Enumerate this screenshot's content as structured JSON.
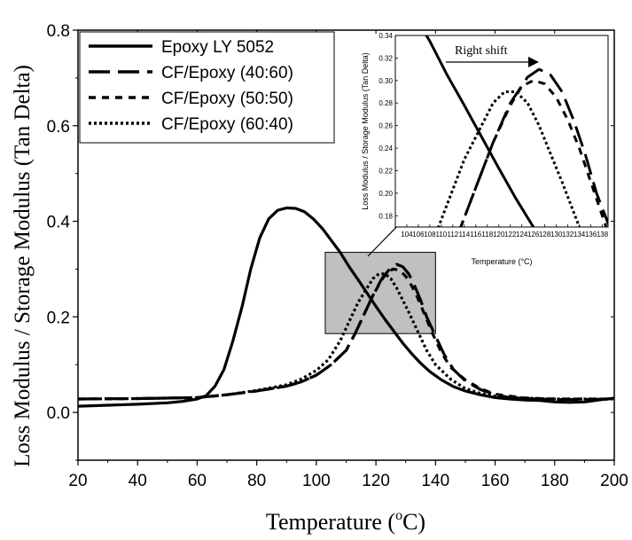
{
  "chart_data": [
    {
      "type": "line",
      "xlabel": "Temperature (°C)",
      "xlabel_parts": {
        "pre": "Temperature (",
        "sup": "o",
        "post": "C)"
      },
      "ylabel": "Loss Modulus / Storage Modulus (Tan Delta)",
      "xlim": [
        20,
        200
      ],
      "ylim": [
        -0.1,
        0.8
      ],
      "xticks": [
        20,
        40,
        60,
        80,
        100,
        120,
        140,
        160,
        180,
        200
      ],
      "xtick_labels": [
        "20",
        "40",
        "60",
        "80",
        "100",
        "120",
        "140",
        "160",
        "180",
        "200"
      ],
      "yticks": [
        0.0,
        0.2,
        0.4,
        0.6,
        0.8
      ],
      "ytick_labels": [
        "0.0",
        "0.2",
        "0.4",
        "0.6",
        "0.8"
      ],
      "grid": false,
      "legend_position": "top-left",
      "highlight_region": {
        "x": [
          103,
          140
        ],
        "y": [
          0.165,
          0.335
        ]
      },
      "series": [
        {
          "name": "Epoxy LY 5052",
          "dash": "solid",
          "points": [
            [
              20,
              0.013
            ],
            [
              30,
              0.015
            ],
            [
              40,
              0.017
            ],
            [
              50,
              0.02
            ],
            [
              55,
              0.023
            ],
            [
              60,
              0.028
            ],
            [
              63,
              0.035
            ],
            [
              66,
              0.055
            ],
            [
              69,
              0.09
            ],
            [
              72,
              0.15
            ],
            [
              75,
              0.22
            ],
            [
              78,
              0.3
            ],
            [
              81,
              0.365
            ],
            [
              84,
              0.405
            ],
            [
              87,
              0.423
            ],
            [
              90,
              0.428
            ],
            [
              93,
              0.427
            ],
            [
              96,
              0.42
            ],
            [
              99,
              0.405
            ],
            [
              102,
              0.385
            ],
            [
              105,
              0.36
            ],
            [
              108,
              0.335
            ],
            [
              111,
              0.305
            ],
            [
              114,
              0.278
            ],
            [
              117,
              0.25
            ],
            [
              120,
              0.222
            ],
            [
              123,
              0.195
            ],
            [
              126,
              0.17
            ],
            [
              129,
              0.145
            ],
            [
              132,
              0.123
            ],
            [
              135,
              0.103
            ],
            [
              138,
              0.086
            ],
            [
              142,
              0.068
            ],
            [
              146,
              0.054
            ],
            [
              150,
              0.045
            ],
            [
              155,
              0.037
            ],
            [
              160,
              0.031
            ],
            [
              165,
              0.028
            ],
            [
              170,
              0.026
            ],
            [
              175,
              0.025
            ],
            [
              180,
              0.022
            ],
            [
              185,
              0.021
            ],
            [
              190,
              0.022
            ],
            [
              195,
              0.026
            ],
            [
              200,
              0.03
            ]
          ]
        },
        {
          "name": "CF/Epoxy (40:60)",
          "dash": "longdash",
          "points": [
            [
              20,
              0.028
            ],
            [
              40,
              0.029
            ],
            [
              60,
              0.031
            ],
            [
              70,
              0.037
            ],
            [
              80,
              0.045
            ],
            [
              90,
              0.055
            ],
            [
              95,
              0.064
            ],
            [
              100,
              0.078
            ],
            [
              105,
              0.1
            ],
            [
              110,
              0.13
            ],
            [
              113,
              0.165
            ],
            [
              116,
              0.205
            ],
            [
              119,
              0.245
            ],
            [
              122,
              0.28
            ],
            [
              125,
              0.303
            ],
            [
              127,
              0.31
            ],
            [
              129,
              0.305
            ],
            [
              131,
              0.29
            ],
            [
              133,
              0.265
            ],
            [
              135,
              0.235
            ],
            [
              137,
              0.2
            ],
            [
              140,
              0.16
            ],
            [
              143,
              0.12
            ],
            [
              146,
              0.09
            ],
            [
              150,
              0.066
            ],
            [
              155,
              0.048
            ],
            [
              160,
              0.037
            ],
            [
              165,
              0.031
            ],
            [
              170,
              0.029
            ],
            [
              180,
              0.027
            ],
            [
              190,
              0.027
            ],
            [
              200,
              0.028
            ]
          ]
        },
        {
          "name": "CF/Epoxy (50:50)",
          "dash": "dashed",
          "points": [
            [
              20,
              0.028
            ],
            [
              40,
              0.029
            ],
            [
              60,
              0.031
            ],
            [
              70,
              0.037
            ],
            [
              80,
              0.045
            ],
            [
              90,
              0.055
            ],
            [
              95,
              0.064
            ],
            [
              100,
              0.078
            ],
            [
              105,
              0.1
            ],
            [
              110,
              0.13
            ],
            [
              113,
              0.165
            ],
            [
              116,
              0.205
            ],
            [
              119,
              0.245
            ],
            [
              122,
              0.278
            ],
            [
              124,
              0.295
            ],
            [
              126,
              0.3
            ],
            [
              128,
              0.297
            ],
            [
              130,
              0.285
            ],
            [
              132,
              0.265
            ],
            [
              134,
              0.24
            ],
            [
              136,
              0.21
            ],
            [
              139,
              0.165
            ],
            [
              142,
              0.125
            ],
            [
              145,
              0.095
            ],
            [
              150,
              0.068
            ],
            [
              155,
              0.05
            ],
            [
              160,
              0.038
            ],
            [
              170,
              0.03
            ],
            [
              180,
              0.028
            ],
            [
              190,
              0.028
            ],
            [
              200,
              0.028
            ]
          ]
        },
        {
          "name": "CF/Epoxy (60:40)",
          "dash": "dotted",
          "points": [
            [
              20,
              0.028
            ],
            [
              40,
              0.029
            ],
            [
              60,
              0.031
            ],
            [
              70,
              0.037
            ],
            [
              80,
              0.046
            ],
            [
              90,
              0.058
            ],
            [
              95,
              0.07
            ],
            [
              100,
              0.088
            ],
            [
              104,
              0.11
            ],
            [
              108,
              0.15
            ],
            [
              111,
              0.19
            ],
            [
              114,
              0.23
            ],
            [
              117,
              0.26
            ],
            [
              119,
              0.28
            ],
            [
              121,
              0.29
            ],
            [
              123,
              0.29
            ],
            [
              125,
              0.28
            ],
            [
              127,
              0.26
            ],
            [
              129,
              0.235
            ],
            [
              131,
              0.21
            ],
            [
              134,
              0.17
            ],
            [
              137,
              0.13
            ],
            [
              140,
              0.1
            ],
            [
              145,
              0.07
            ],
            [
              150,
              0.05
            ],
            [
              155,
              0.04
            ],
            [
              160,
              0.034
            ],
            [
              170,
              0.03
            ],
            [
              180,
              0.028
            ],
            [
              190,
              0.028
            ],
            [
              200,
              0.028
            ]
          ]
        }
      ]
    },
    {
      "type": "line",
      "role": "inset",
      "xlabel": "Temperature (°C)",
      "ylabel": "Loss Modulus / Storage Modulus (Tan Delta)",
      "xlim": [
        102,
        139
      ],
      "ylim": [
        0.17,
        0.34
      ],
      "xticks": [
        104,
        106,
        108,
        110,
        112,
        114,
        116,
        118,
        120,
        122,
        124,
        126,
        128,
        130,
        132,
        134,
        136,
        138
      ],
      "xtick_labels": [
        "104",
        "106",
        "108",
        "110",
        "112",
        "114",
        "116",
        "118",
        "120",
        "122",
        "124",
        "126",
        "128",
        "130",
        "132",
        "134",
        "136",
        "138"
      ],
      "yticks": [
        0.18,
        0.2,
        0.22,
        0.24,
        0.26,
        0.28,
        0.3,
        0.32,
        0.34
      ],
      "ytick_labels": [
        "0.18",
        "0.20",
        "0.22",
        "0.24",
        "0.26",
        "0.28",
        "0.30",
        "0.32",
        "0.34"
      ],
      "annotation": "Right shift",
      "series_from_main": true
    }
  ]
}
